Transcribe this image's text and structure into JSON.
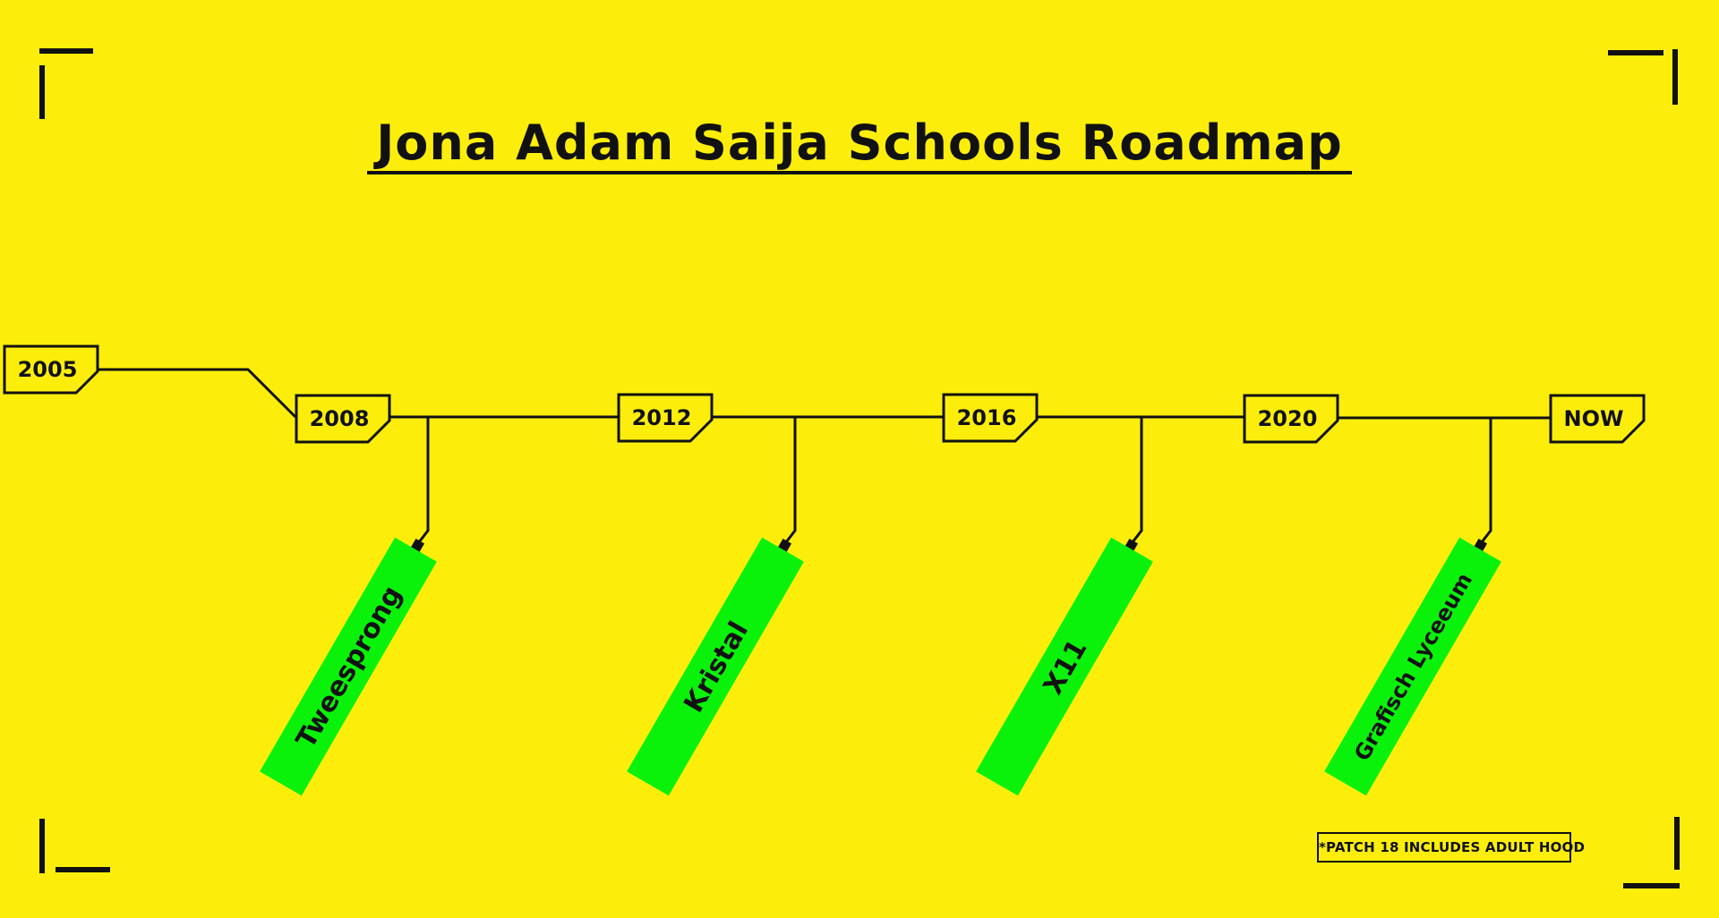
{
  "title": "Jona Adam Saija Schools Roadmap",
  "milestones": [
    "2005",
    "2008",
    "2012",
    "2016",
    "2020",
    "NOW"
  ],
  "schools": [
    "Tweesprong",
    "Kristal",
    "X11",
    "Grafisch Lyceeum"
  ],
  "note": "*PATCH 18 INCLUDES ADULT HOOD",
  "colors": {
    "background": "#fcee0a",
    "ink": "#111111",
    "tag": "#0af20a"
  }
}
